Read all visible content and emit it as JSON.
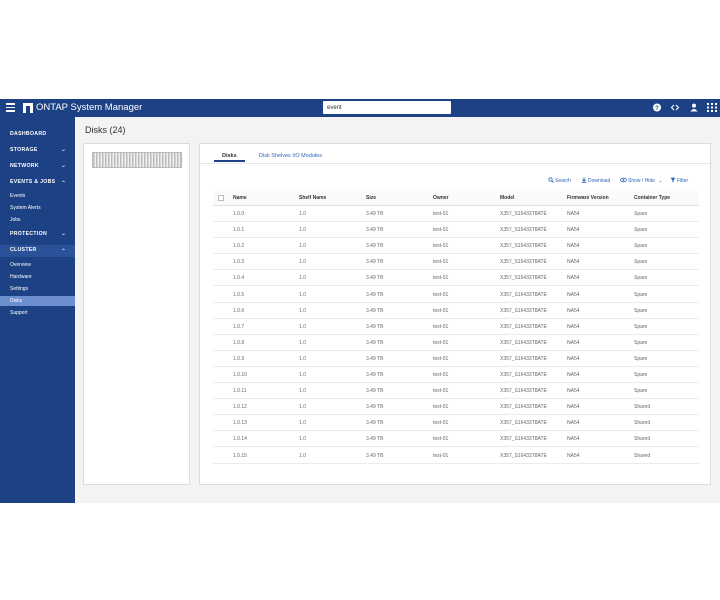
{
  "app": {
    "title": "ONTAP System Manager"
  },
  "topbar": {
    "search_value": "event",
    "clear_glyph": "✕",
    "icons": [
      "help-icon",
      "code-icon",
      "user-icon",
      "apps-grid-icon"
    ]
  },
  "sidebar": {
    "sections": [
      {
        "label": "DASHBOARD",
        "chevron": ""
      },
      {
        "label": "STORAGE",
        "chevron": "⌄"
      },
      {
        "label": "NETWORK",
        "chevron": "⌄"
      },
      {
        "label": "EVENTS & JOBS",
        "chevron": "⌃"
      },
      {
        "label": "PROTECTION",
        "chevron": "⌄"
      },
      {
        "label": "CLUSTER",
        "chevron": "⌃"
      }
    ],
    "events_items": [
      "Events",
      "System Alerts",
      "Jobs"
    ],
    "cluster_items": [
      "Overview",
      "Hardware",
      "Settings",
      "Disks",
      "Support"
    ],
    "selected": "Disks"
  },
  "page": {
    "title": "Disks (24)"
  },
  "tabs": [
    "Disks",
    "Disk Shelves I/O Modules"
  ],
  "actions": {
    "search": "Search",
    "download": "Download",
    "show_hide": "Show / Hide",
    "filter": "Filter"
  },
  "table": {
    "columns": [
      "Name",
      "Shelf Name",
      "Size",
      "Owner",
      "Model",
      "Firmware Version",
      "Container Type"
    ],
    "rows": [
      [
        "1.0.0",
        "1.0",
        "3.49 TB",
        "test-01",
        "X357_S16433T8ATE",
        "NA54",
        "Spare"
      ],
      [
        "1.0.1",
        "1.0",
        "3.49 TB",
        "test-01",
        "X357_S16433T8ATE",
        "NA54",
        "Spare"
      ],
      [
        "1.0.2",
        "1.0",
        "3.49 TB",
        "test-01",
        "X357_S16433T8ATE",
        "NA54",
        "Spare"
      ],
      [
        "1.0.3",
        "1.0",
        "3.49 TB",
        "test-01",
        "X357_S16433T8ATE",
        "NA54",
        "Spare"
      ],
      [
        "1.0.4",
        "1.0",
        "3.49 TB",
        "test-01",
        "X357_S16433T8ATE",
        "NA54",
        "Spare"
      ],
      [
        "1.0.5",
        "1.0",
        "3.49 TB",
        "test-01",
        "X357_S16433T8ATE",
        "NA54",
        "Spare"
      ],
      [
        "1.0.6",
        "1.0",
        "3.49 TB",
        "test-01",
        "X357_S16433T8ATE",
        "NA54",
        "Spare"
      ],
      [
        "1.0.7",
        "1.0",
        "3.49 TB",
        "test-01",
        "X357_S16433T8ATE",
        "NA54",
        "Spare"
      ],
      [
        "1.0.8",
        "1.0",
        "3.49 TB",
        "test-01",
        "X357_S16433T8ATE",
        "NA54",
        "Spare"
      ],
      [
        "1.0.9",
        "1.0",
        "3.49 TB",
        "test-01",
        "X357_S16433T8ATE",
        "NA54",
        "Spare"
      ],
      [
        "1.0.10",
        "1.0",
        "3.49 TB",
        "test-01",
        "X357_S16433T8ATE",
        "NA54",
        "Spare"
      ],
      [
        "1.0.11",
        "1.0",
        "3.49 TB",
        "test-01",
        "X357_S16433T8ATE",
        "NA54",
        "Spare"
      ],
      [
        "1.0.12",
        "1.0",
        "3.49 TB",
        "test-01",
        "X357_S16433T8ATE",
        "NA54",
        "Shared"
      ],
      [
        "1.0.13",
        "1.0",
        "3.49 TB",
        "test-01",
        "X357_S16433T8ATE",
        "NA54",
        "Shared"
      ],
      [
        "1.0.14",
        "1.0",
        "3.49 TB",
        "test-01",
        "X357_S16433T8ATE",
        "NA54",
        "Shared"
      ],
      [
        "1.0.15",
        "1.0",
        "3.49 TB",
        "test-01",
        "X357_S16433T8ATE",
        "NA54",
        "Shared"
      ]
    ]
  },
  "colors": {
    "brand": "#1c4185",
    "link": "#2f64b8",
    "selected_nav": "#6e8fcf"
  }
}
